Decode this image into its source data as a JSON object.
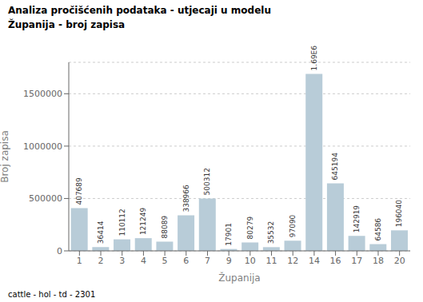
{
  "chart_data": {
    "type": "bar",
    "title": "Analiza pročišćenih podataka - utjecaji u modelu",
    "subtitle": "Županija - broj zapisa",
    "x_label": "Županija",
    "y_label": "Broj zapisa",
    "annotations": [
      "cattle - hol - td - 2301"
    ],
    "categories": [
      "1",
      "2",
      "3",
      "4",
      "5",
      "6",
      "7",
      "9",
      "10",
      "11",
      "12",
      "14",
      "16",
      "17",
      "18",
      "20"
    ],
    "values": [
      407689,
      36414,
      110112,
      121249,
      88089,
      338966,
      500312,
      17901,
      80279,
      35532,
      97090,
      1690000,
      645194,
      142919,
      64586,
      196040
    ],
    "value_labels": [
      "407689",
      "36414",
      "110112",
      "121249",
      "88089",
      "338966",
      "500312",
      "17901",
      "80279",
      "35532",
      "97090",
      "1.69E6",
      "645194",
      "142919",
      "64586",
      "196040"
    ],
    "data_labels": true,
    "color": "#b8ccd8",
    "ylim": [
      0,
      1800000
    ],
    "yticks": [
      0,
      500000,
      1000000,
      1500000
    ],
    "grid": true
  }
}
